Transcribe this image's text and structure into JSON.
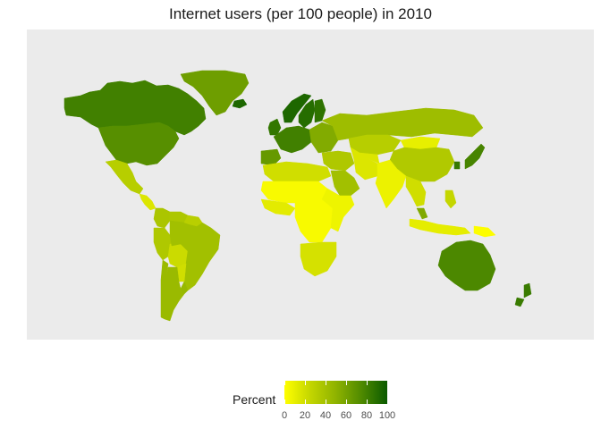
{
  "map": {
    "title": "Internet users (per 100 people) in 2010",
    "colorbar": {
      "title": "Percent",
      "ticks": [
        "0",
        "20",
        "40",
        "60",
        "80",
        "100"
      ],
      "colors": [
        "#ffff00",
        "#c4d600",
        "#8fb300",
        "#4f8a00",
        "#0a5a00"
      ],
      "range": [
        0,
        100
      ]
    },
    "background": "#ebebeb",
    "regions": [
      {
        "name": "Canada",
        "value": 80
      },
      {
        "name": "United States",
        "value": 72
      },
      {
        "name": "Greenland",
        "value": 63
      },
      {
        "name": "Mexico",
        "value": 31
      },
      {
        "name": "Central America",
        "value": 15
      },
      {
        "name": "Colombia",
        "value": 37
      },
      {
        "name": "Venezuela",
        "value": 36
      },
      {
        "name": "Peru",
        "value": 35
      },
      {
        "name": "Bolivia",
        "value": 22
      },
      {
        "name": "Brazil",
        "value": 41
      },
      {
        "name": "Paraguay",
        "value": 20
      },
      {
        "name": "Chile",
        "value": 45
      },
      {
        "name": "Argentina",
        "value": 45
      },
      {
        "name": "Uruguay",
        "value": 46
      },
      {
        "name": "Guyana region",
        "value": 30
      },
      {
        "name": "Iceland",
        "value": 93
      },
      {
        "name": "Norway",
        "value": 93
      },
      {
        "name": "Sweden",
        "value": 90
      },
      {
        "name": "Finland",
        "value": 87
      },
      {
        "name": "United Kingdom",
        "value": 85
      },
      {
        "name": "Western Europe",
        "value": 80
      },
      {
        "name": "Iberia",
        "value": 66
      },
      {
        "name": "Eastern Europe",
        "value": 55
      },
      {
        "name": "Russia",
        "value": 43
      },
      {
        "name": "Kazakhstan",
        "value": 31
      },
      {
        "name": "Mongolia",
        "value": 10
      },
      {
        "name": "China",
        "value": 34
      },
      {
        "name": "Japan",
        "value": 78
      },
      {
        "name": "South Korea",
        "value": 84
      },
      {
        "name": "Middle East",
        "value": 35
      },
      {
        "name": "Saudi Arabia",
        "value": 41
      },
      {
        "name": "Iran",
        "value": 15
      },
      {
        "name": "Central Asia",
        "value": 15
      },
      {
        "name": "India",
        "value": 8
      },
      {
        "name": "Southeast Asia",
        "value": 20
      },
      {
        "name": "Malaysia",
        "value": 56
      },
      {
        "name": "Indonesia",
        "value": 11
      },
      {
        "name": "Philippines",
        "value": 25
      },
      {
        "name": "Papua New Guinea",
        "value": 1
      },
      {
        "name": "Australia",
        "value": 76
      },
      {
        "name": "New Zealand",
        "value": 83
      },
      {
        "name": "North Africa",
        "value": 20
      },
      {
        "name": "Sahel",
        "value": 3
      },
      {
        "name": "West Africa",
        "value": 12
      },
      {
        "name": "Central Africa",
        "value": 3
      },
      {
        "name": "East Africa",
        "value": 7
      },
      {
        "name": "Southern Africa",
        "value": 18
      }
    ]
  }
}
